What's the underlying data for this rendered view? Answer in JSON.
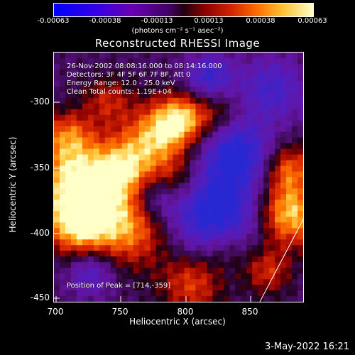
{
  "colorbar": {
    "ticks": [
      "-0.00063",
      "-0.00038",
      "-0.00013",
      "0.00013",
      "0.00038",
      "0.00063"
    ],
    "units": "(photons cm⁻² s⁻¹ asec⁻²)"
  },
  "title": "Reconstructed RHESSI Image",
  "info": {
    "line1": "26-Nov-2002 08:08:16.000 to 08:14:16.000",
    "line2": "Detectors: 3F 4F 5F 6F 7F 8F, Att 0",
    "line3": "Energy Range: 12.0 - 25.0 keV",
    "line4": "Clean     Total counts: 1.19E+04",
    "peak": "Position of Peak = [714,-359]"
  },
  "axes": {
    "xlabel": "Heliocentric X (arcsec)",
    "ylabel": "Heliocentric Y (arcsec)",
    "xticks": [
      "700",
      "750",
      "800",
      "850"
    ],
    "yticks": [
      "-300",
      "-350",
      "-400",
      "-450"
    ]
  },
  "timestamp": "3-May-2022 16:21"
}
